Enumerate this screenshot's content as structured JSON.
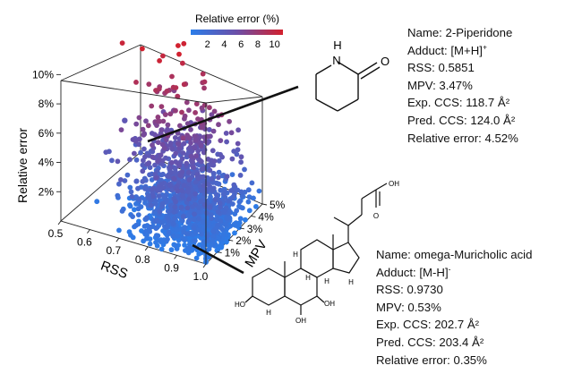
{
  "chart_data": {
    "type": "scatter",
    "dimensions": "3d",
    "colorbar": {
      "title": "Relative error (%)",
      "ticks": [
        "2",
        "4",
        "6",
        "8",
        "10"
      ],
      "range": [
        0,
        11
      ],
      "colors": [
        "#2b7de9",
        "#6b4fa8",
        "#d3202d"
      ]
    },
    "axes": {
      "x": {
        "label": "RSS",
        "range": [
          0.5,
          1.0
        ],
        "ticks": [
          "0.5",
          "0.6",
          "0.7",
          "0.8",
          "0.9",
          "1.0"
        ]
      },
      "y": {
        "label": "MPV",
        "range": [
          0,
          5
        ],
        "ticks": [
          "1%",
          "2%",
          "3%",
          "4%",
          "5%"
        ]
      },
      "z": {
        "label": "Relative error",
        "range": [
          0,
          11
        ],
        "ticks": [
          "2%",
          "4%",
          "6%",
          "8%",
          "10%"
        ]
      }
    },
    "highlighted_points": [
      {
        "name": "2-Piperidone",
        "rss": 0.5851,
        "mpv": 3.47,
        "relative_error": 4.52
      },
      {
        "name": "omega-Muricholic acid",
        "rss": 0.973,
        "mpv": 0.53,
        "relative_error": 0.35
      }
    ]
  },
  "annotations": {
    "top": {
      "name": "Name: 2-Piperidone",
      "adduct_prefix": "Adduct: [M+H]",
      "adduct_charge": "+",
      "rss": "RSS: 0.5851",
      "mpv": "MPV: 3.47%",
      "exp_ccs": "Exp. CCS: 118.7 Å²",
      "pred_ccs": "Pred. CCS: 124.0 Å²",
      "relative_error": "Relative error: 4.52%"
    },
    "bottom": {
      "name": "Name: omega-Muricholic acid",
      "adduct_prefix": "Adduct: [M-H]",
      "adduct_charge": "-",
      "rss": "RSS: 0.9730",
      "mpv": "MPV: 0.53%",
      "exp_ccs": "Exp. CCS: 202.7 Å²",
      "pred_ccs": "Pred. CCS: 203.4 Å²",
      "relative_error": "Relative error: 0.35%"
    }
  },
  "structures": {
    "piperidone": {
      "atoms": [
        "H",
        "N",
        "O"
      ]
    },
    "muricholic": {
      "atoms": [
        "O",
        "OH",
        "HO",
        "OH",
        "OH",
        "H",
        "H",
        "H",
        "H",
        "H"
      ]
    }
  }
}
